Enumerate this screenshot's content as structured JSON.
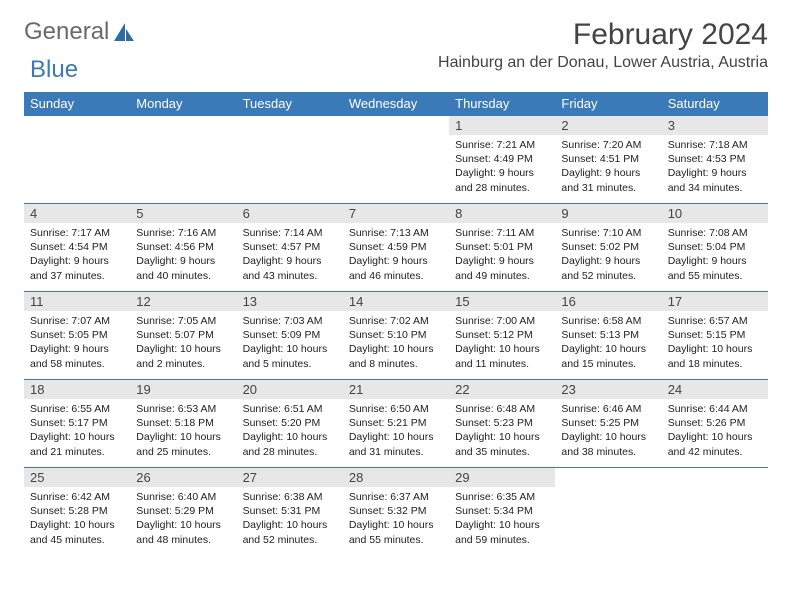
{
  "brand": {
    "word1": "General",
    "word2": "Blue"
  },
  "header": {
    "title": "February 2024",
    "location": "Hainburg an der Donau, Lower Austria, Austria"
  },
  "colors": {
    "header_bg": "#3a7ab8",
    "header_text": "#ffffff",
    "daynum_bg": "#e7e7e7",
    "row_border": "#3a7ab8",
    "logo_gray": "#6a6a6a",
    "logo_blue": "#3a7ab8"
  },
  "day_labels": [
    "Sunday",
    "Monday",
    "Tuesday",
    "Wednesday",
    "Thursday",
    "Friday",
    "Saturday"
  ],
  "weeks": [
    [
      null,
      null,
      null,
      null,
      {
        "n": "1",
        "sr": "Sunrise: 7:21 AM",
        "ss": "Sunset: 4:49 PM",
        "d1": "Daylight: 9 hours",
        "d2": "and 28 minutes."
      },
      {
        "n": "2",
        "sr": "Sunrise: 7:20 AM",
        "ss": "Sunset: 4:51 PM",
        "d1": "Daylight: 9 hours",
        "d2": "and 31 minutes."
      },
      {
        "n": "3",
        "sr": "Sunrise: 7:18 AM",
        "ss": "Sunset: 4:53 PM",
        "d1": "Daylight: 9 hours",
        "d2": "and 34 minutes."
      }
    ],
    [
      {
        "n": "4",
        "sr": "Sunrise: 7:17 AM",
        "ss": "Sunset: 4:54 PM",
        "d1": "Daylight: 9 hours",
        "d2": "and 37 minutes."
      },
      {
        "n": "5",
        "sr": "Sunrise: 7:16 AM",
        "ss": "Sunset: 4:56 PM",
        "d1": "Daylight: 9 hours",
        "d2": "and 40 minutes."
      },
      {
        "n": "6",
        "sr": "Sunrise: 7:14 AM",
        "ss": "Sunset: 4:57 PM",
        "d1": "Daylight: 9 hours",
        "d2": "and 43 minutes."
      },
      {
        "n": "7",
        "sr": "Sunrise: 7:13 AM",
        "ss": "Sunset: 4:59 PM",
        "d1": "Daylight: 9 hours",
        "d2": "and 46 minutes."
      },
      {
        "n": "8",
        "sr": "Sunrise: 7:11 AM",
        "ss": "Sunset: 5:01 PM",
        "d1": "Daylight: 9 hours",
        "d2": "and 49 minutes."
      },
      {
        "n": "9",
        "sr": "Sunrise: 7:10 AM",
        "ss": "Sunset: 5:02 PM",
        "d1": "Daylight: 9 hours",
        "d2": "and 52 minutes."
      },
      {
        "n": "10",
        "sr": "Sunrise: 7:08 AM",
        "ss": "Sunset: 5:04 PM",
        "d1": "Daylight: 9 hours",
        "d2": "and 55 minutes."
      }
    ],
    [
      {
        "n": "11",
        "sr": "Sunrise: 7:07 AM",
        "ss": "Sunset: 5:05 PM",
        "d1": "Daylight: 9 hours",
        "d2": "and 58 minutes."
      },
      {
        "n": "12",
        "sr": "Sunrise: 7:05 AM",
        "ss": "Sunset: 5:07 PM",
        "d1": "Daylight: 10 hours",
        "d2": "and 2 minutes."
      },
      {
        "n": "13",
        "sr": "Sunrise: 7:03 AM",
        "ss": "Sunset: 5:09 PM",
        "d1": "Daylight: 10 hours",
        "d2": "and 5 minutes."
      },
      {
        "n": "14",
        "sr": "Sunrise: 7:02 AM",
        "ss": "Sunset: 5:10 PM",
        "d1": "Daylight: 10 hours",
        "d2": "and 8 minutes."
      },
      {
        "n": "15",
        "sr": "Sunrise: 7:00 AM",
        "ss": "Sunset: 5:12 PM",
        "d1": "Daylight: 10 hours",
        "d2": "and 11 minutes."
      },
      {
        "n": "16",
        "sr": "Sunrise: 6:58 AM",
        "ss": "Sunset: 5:13 PM",
        "d1": "Daylight: 10 hours",
        "d2": "and 15 minutes."
      },
      {
        "n": "17",
        "sr": "Sunrise: 6:57 AM",
        "ss": "Sunset: 5:15 PM",
        "d1": "Daylight: 10 hours",
        "d2": "and 18 minutes."
      }
    ],
    [
      {
        "n": "18",
        "sr": "Sunrise: 6:55 AM",
        "ss": "Sunset: 5:17 PM",
        "d1": "Daylight: 10 hours",
        "d2": "and 21 minutes."
      },
      {
        "n": "19",
        "sr": "Sunrise: 6:53 AM",
        "ss": "Sunset: 5:18 PM",
        "d1": "Daylight: 10 hours",
        "d2": "and 25 minutes."
      },
      {
        "n": "20",
        "sr": "Sunrise: 6:51 AM",
        "ss": "Sunset: 5:20 PM",
        "d1": "Daylight: 10 hours",
        "d2": "and 28 minutes."
      },
      {
        "n": "21",
        "sr": "Sunrise: 6:50 AM",
        "ss": "Sunset: 5:21 PM",
        "d1": "Daylight: 10 hours",
        "d2": "and 31 minutes."
      },
      {
        "n": "22",
        "sr": "Sunrise: 6:48 AM",
        "ss": "Sunset: 5:23 PM",
        "d1": "Daylight: 10 hours",
        "d2": "and 35 minutes."
      },
      {
        "n": "23",
        "sr": "Sunrise: 6:46 AM",
        "ss": "Sunset: 5:25 PM",
        "d1": "Daylight: 10 hours",
        "d2": "and 38 minutes."
      },
      {
        "n": "24",
        "sr": "Sunrise: 6:44 AM",
        "ss": "Sunset: 5:26 PM",
        "d1": "Daylight: 10 hours",
        "d2": "and 42 minutes."
      }
    ],
    [
      {
        "n": "25",
        "sr": "Sunrise: 6:42 AM",
        "ss": "Sunset: 5:28 PM",
        "d1": "Daylight: 10 hours",
        "d2": "and 45 minutes."
      },
      {
        "n": "26",
        "sr": "Sunrise: 6:40 AM",
        "ss": "Sunset: 5:29 PM",
        "d1": "Daylight: 10 hours",
        "d2": "and 48 minutes."
      },
      {
        "n": "27",
        "sr": "Sunrise: 6:38 AM",
        "ss": "Sunset: 5:31 PM",
        "d1": "Daylight: 10 hours",
        "d2": "and 52 minutes."
      },
      {
        "n": "28",
        "sr": "Sunrise: 6:37 AM",
        "ss": "Sunset: 5:32 PM",
        "d1": "Daylight: 10 hours",
        "d2": "and 55 minutes."
      },
      {
        "n": "29",
        "sr": "Sunrise: 6:35 AM",
        "ss": "Sunset: 5:34 PM",
        "d1": "Daylight: 10 hours",
        "d2": "and 59 minutes."
      },
      null,
      null
    ]
  ]
}
